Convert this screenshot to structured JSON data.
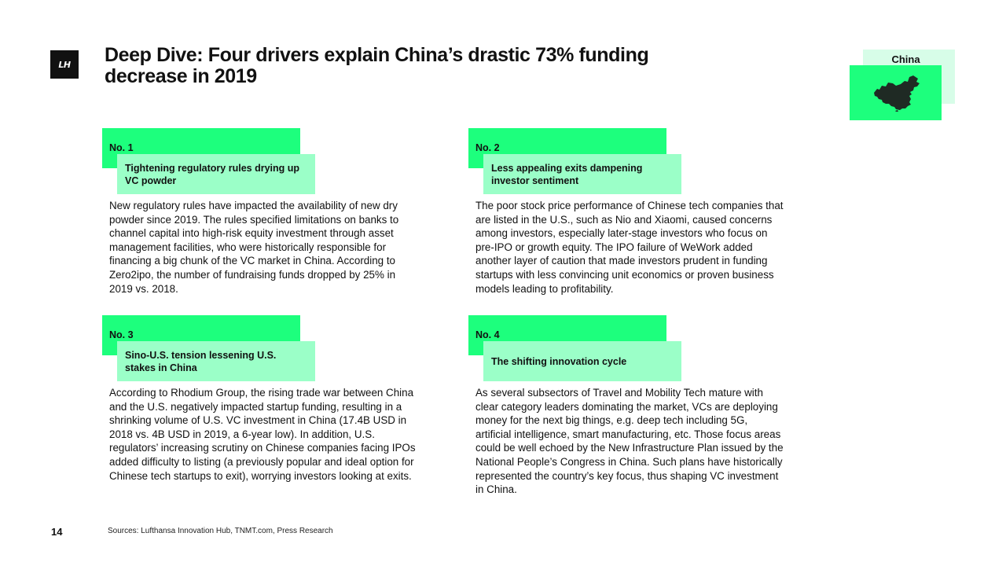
{
  "logo": {
    "text": "LH"
  },
  "title": "Deep Dive: Four drivers explain China’s drastic 73% funding decrease in 2019",
  "country": {
    "label": "China",
    "map_icon": "china-map-icon"
  },
  "drivers": [
    {
      "number": "No. 1",
      "subtitle": "Tightening regulatory rules drying up VC powder",
      "text": "New regulatory rules have impacted the availability of new dry powder since 2019. The rules specified limitations on banks to channel capital into high-risk equity investment through asset management facilities, who were historically responsible for financing a big chunk of the VC market in China. According to Zero2ipo, the number of fundraising funds dropped by 25% in 2019 vs. 2018."
    },
    {
      "number": "No. 2",
      "subtitle": "Less appealing exits dampening investor sentiment",
      "text": "The poor stock price performance of Chinese tech companies that are listed in the U.S., such as Nio and Xiaomi, caused concerns among investors, especially later-stage investors who focus on pre-IPO or growth equity. The IPO failure of WeWork added another layer of caution that made investors prudent in funding startups with less convincing unit economics or proven business models leading to profitability."
    },
    {
      "number": "No. 3",
      "subtitle": "Sino-U.S. tension lessening U.S. stakes in China",
      "text": "According to Rhodium Group, the rising trade war between China and the U.S. negatively impacted startup funding, resulting in a shrinking volume of U.S. VC investment in China (17.4B USD in 2018 vs. 4B USD in 2019, a 6-year low). In addition, U.S. regulators’ increasing scrutiny on Chinese companies facing IPOs added difficulty to listing (a previously popular and ideal option for Chinese tech startups to exit), worrying investors looking at exits."
    },
    {
      "number": "No. 4",
      "subtitle": "The shifting innovation cycle",
      "text": "As several subsectors of Travel and Mobility Tech mature with clear category leaders dominating the market, VCs are deploying money for the next big things, e.g. deep tech including 5G, artificial intelligence, smart manufacturing, etc. Those focus areas could be well echoed by the New Infrastructure Plan issued by the National People’s Congress in China. Such plans have historically represented the country’s key focus, thus shaping VC investment in China."
    }
  ],
  "footer": {
    "page_number": "14",
    "sources": "Sources: Lufthansa Innovation Hub, TNMT.com, Press Research"
  },
  "colors": {
    "accent": "#1dff7d",
    "accent_light": "#9bffc8",
    "accent_pale": "#d7fde8",
    "text": "#111111"
  }
}
